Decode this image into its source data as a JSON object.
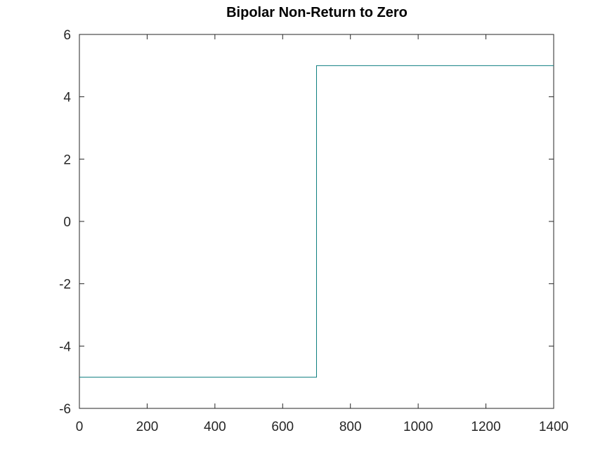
{
  "chart_data": {
    "type": "line",
    "title": "Bipolar Non-Return to Zero",
    "xlabel": "",
    "ylabel": "",
    "xlim": [
      0,
      1400
    ],
    "ylim": [
      -6,
      6
    ],
    "x_ticks": [
      "0",
      "200",
      "400",
      "600",
      "800",
      "1000",
      "1200",
      "1400"
    ],
    "y_ticks": [
      "-6",
      "-4",
      "-2",
      "0",
      "2",
      "4",
      "6"
    ],
    "grid": false,
    "legend": "none",
    "series": [
      {
        "color": "#0f7f80",
        "points": [
          [
            0,
            -5
          ],
          [
            700,
            -5
          ],
          [
            700,
            5
          ],
          [
            1400,
            5
          ]
        ]
      }
    ]
  }
}
